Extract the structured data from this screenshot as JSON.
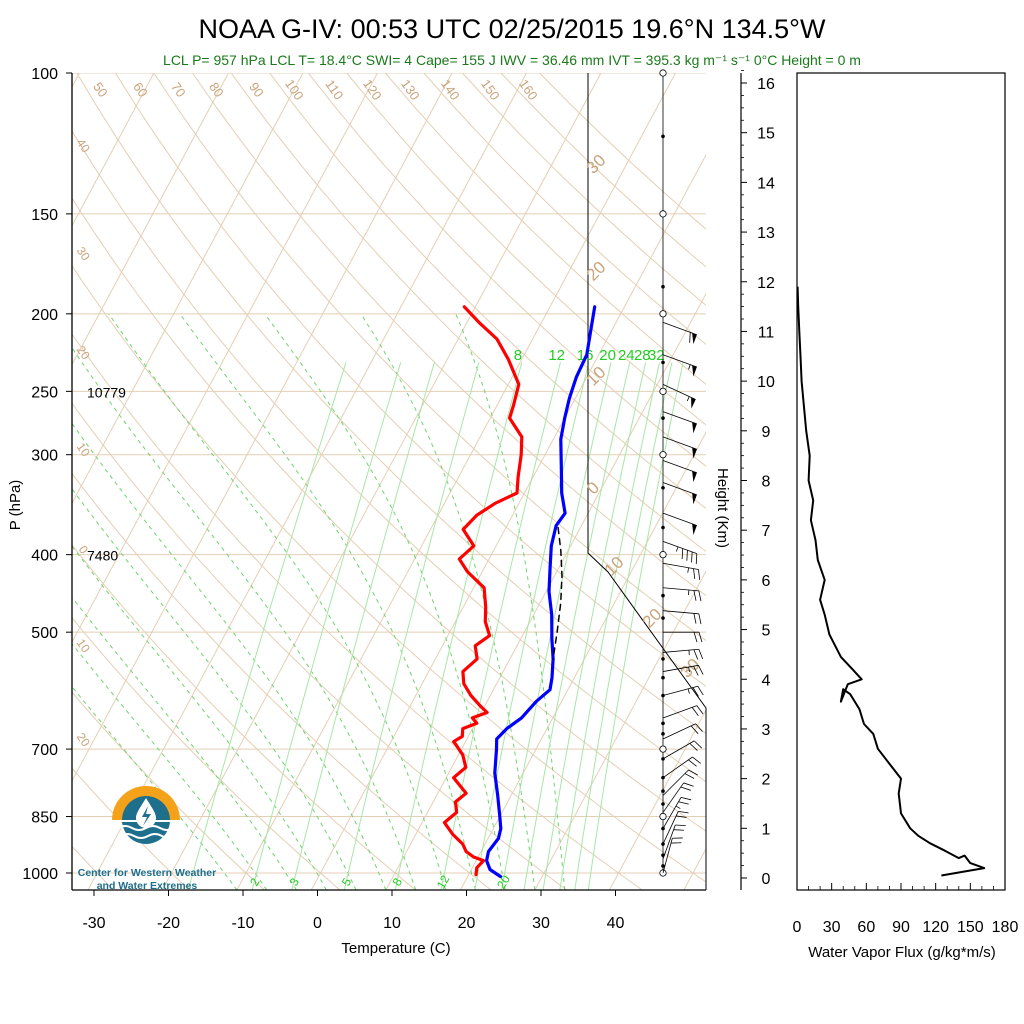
{
  "chart_data": {
    "type": "line",
    "title": "NOAA G-IV: 00:53 UTC 02/25/2015  19.6°N 134.5°W",
    "subtitle": "LCL P= 957 hPa  LCL T= 18.4°C  SWI= 4  Cape= 155 J  IWV = 36.46 mm  IVT = 395.3 kg m⁻¹ s⁻¹  0°C Height = 0 m",
    "xlabel": "Temperature (C)",
    "ylabel": "P (hPa)",
    "xlim": [
      -34,
      36
    ],
    "pressure_range": [
      100,
      1050
    ],
    "x_ticks": [
      "-30",
      "-20",
      "-10",
      "0",
      "10",
      "20",
      "30",
      "40"
    ],
    "p_ticks": [
      {
        "p": 100,
        "label": "100"
      },
      {
        "p": 150,
        "label": "150"
      },
      {
        "p": 200,
        "label": "200"
      },
      {
        "p": 250,
        "label": "250"
      },
      {
        "p": 300,
        "label": "300"
      },
      {
        "p": 400,
        "label": "400"
      },
      {
        "p": 500,
        "label": "500"
      },
      {
        "p": 700,
        "label": "700"
      },
      {
        "p": 850,
        "label": "850"
      },
      {
        "p": 1000,
        "label": "1000"
      }
    ],
    "height_annotations": [
      {
        "p": 250,
        "label": "10779"
      },
      {
        "p": 400,
        "label": "7480"
      }
    ],
    "mixing_ratio_labels": [
      {
        "w": 8,
        "label": "8"
      },
      {
        "w": 12,
        "label": "12"
      },
      {
        "w": 16,
        "label": "16"
      },
      {
        "w": 20,
        "label": "20"
      },
      {
        "w": 24,
        "label": "24"
      },
      {
        "w": 28,
        "label": "28"
      },
      {
        "w": 32,
        "label": "32"
      }
    ],
    "mixing_ratio_bottom_labels": [
      {
        "w": 2,
        "label": "2"
      },
      {
        "w": 3,
        "label": "3"
      },
      {
        "w": 5,
        "label": "5"
      },
      {
        "w": 8,
        "label": "8"
      },
      {
        "w": 12,
        "label": "12"
      },
      {
        "w": 20,
        "label": "20"
      }
    ],
    "dry_adiabat_labels": [
      "50",
      "60",
      "70",
      "80",
      "90",
      "100",
      "110",
      "120",
      "130",
      "140",
      "150",
      "160"
    ],
    "isotherm_labels_left": [
      "40",
      "30",
      "20",
      "10",
      "0",
      "10",
      "20"
    ],
    "isotherm_labels_right": [
      "30",
      "20",
      "10",
      "0",
      "10",
      "20",
      "30"
    ],
    "series": [
      {
        "name": "",
        "color": "#0000ff",
        "points": [
          [
            24.4,
            1010
          ],
          [
            22.5,
            990
          ],
          [
            21.4,
            965
          ],
          [
            21.0,
            940
          ],
          [
            21.4,
            905
          ],
          [
            21.0,
            880
          ],
          [
            20.0,
            850
          ],
          [
            18.2,
            800
          ],
          [
            16.2,
            750
          ],
          [
            14.7,
            700
          ],
          [
            14.0,
            680
          ],
          [
            14.6,
            660
          ],
          [
            15.8,
            640
          ],
          [
            16.6,
            610
          ],
          [
            17.6,
            590
          ],
          [
            17.0,
            570
          ],
          [
            15.8,
            540
          ],
          [
            14.2,
            510
          ],
          [
            12.4,
            475
          ],
          [
            10.4,
            445
          ],
          [
            8.8,
            415
          ],
          [
            7.4,
            390
          ],
          [
            6.6,
            368
          ],
          [
            6.9,
            355
          ],
          [
            5.0,
            335
          ],
          [
            3.0,
            310
          ],
          [
            1.0,
            287
          ],
          [
            0.0,
            270
          ],
          [
            -0.8,
            255
          ],
          [
            -1.4,
            240
          ],
          [
            -1.6,
            225
          ],
          [
            -2.8,
            210
          ],
          [
            -4.0,
            196
          ]
        ]
      },
      {
        "name": "",
        "color": "#ff0000",
        "points": [
          [
            21.0,
            1005
          ],
          [
            20.6,
            985
          ],
          [
            21.0,
            965
          ],
          [
            19.4,
            955
          ],
          [
            18.0,
            940
          ],
          [
            17.0,
            920
          ],
          [
            15.0,
            895
          ],
          [
            13.0,
            865
          ],
          [
            13.9,
            840
          ],
          [
            13.0,
            815
          ],
          [
            13.8,
            795
          ],
          [
            11.0,
            760
          ],
          [
            11.9,
            738
          ],
          [
            10.6,
            712
          ],
          [
            9.0,
            692
          ],
          [
            8.4,
            685
          ],
          [
            9.2,
            675
          ],
          [
            8.7,
            660
          ],
          [
            10.2,
            650
          ],
          [
            9.2,
            640
          ],
          [
            10.8,
            630
          ],
          [
            9.6,
            620
          ],
          [
            7.4,
            600
          ],
          [
            5.6,
            580
          ],
          [
            4.6,
            560
          ],
          [
            5.6,
            540
          ],
          [
            4.4,
            520
          ],
          [
            5.6,
            505
          ],
          [
            4.0,
            485
          ],
          [
            3.0,
            465
          ],
          [
            1.4,
            440
          ],
          [
            -2.0,
            420
          ],
          [
            -4.0,
            405
          ],
          [
            -3.0,
            390
          ],
          [
            -5.6,
            372
          ],
          [
            -4.8,
            357
          ],
          [
            -3.2,
            345
          ],
          [
            -1.0,
            335
          ],
          [
            -2.0,
            320
          ],
          [
            -3.2,
            300
          ],
          [
            -4.4,
            285
          ],
          [
            -7.4,
            270
          ],
          [
            -7.8,
            260
          ],
          [
            -8.6,
            245
          ],
          [
            -11.8,
            228
          ],
          [
            -14.8,
            215
          ],
          [
            -18.4,
            205
          ],
          [
            -21.5,
            196
          ]
        ]
      },
      {
        "name": "",
        "color": "#000000",
        "dash": true,
        "points": [
          [
            7.0,
            370
          ],
          [
            9.0,
            395
          ],
          [
            11.0,
            425
          ],
          [
            12.8,
            460
          ],
          [
            14.4,
            500
          ],
          [
            15.8,
            540
          ]
        ]
      }
    ],
    "height_axis": {
      "label": "Height (Km)",
      "range": [
        0,
        16
      ],
      "ticks": [
        "0",
        "1",
        "2",
        "3",
        "4",
        "5",
        "6",
        "7",
        "8",
        "9",
        "10",
        "11",
        "12",
        "13",
        "14",
        "15",
        "16"
      ]
    },
    "flux_profile": {
      "xlabel": "Water Vapor Flux (g/kg*m/s)",
      "xlim": [
        0,
        180
      ],
      "x_ticks": [
        "0",
        "30",
        "60",
        "90",
        "120",
        "150",
        "180"
      ],
      "points": [
        [
          125,
          0.05
        ],
        [
          150,
          0.15
        ],
        [
          162,
          0.2
        ],
        [
          150,
          0.3
        ],
        [
          145,
          0.45
        ],
        [
          140,
          0.4
        ],
        [
          128,
          0.55
        ],
        [
          115,
          0.7
        ],
        [
          105,
          0.85
        ],
        [
          98,
          1.0
        ],
        [
          90,
          1.3
        ],
        [
          88,
          1.7
        ],
        [
          90,
          2.0
        ],
        [
          80,
          2.3
        ],
        [
          70,
          2.6
        ],
        [
          66,
          2.9
        ],
        [
          58,
          3.1
        ],
        [
          54,
          3.4
        ],
        [
          46,
          3.7
        ],
        [
          40,
          3.8
        ],
        [
          38,
          3.55
        ],
        [
          44,
          3.9
        ],
        [
          56,
          4.0
        ],
        [
          48,
          4.2
        ],
        [
          38,
          4.45
        ],
        [
          28,
          4.9
        ],
        [
          24,
          5.3
        ],
        [
          20,
          5.6
        ],
        [
          24,
          6.0
        ],
        [
          18,
          6.4
        ],
        [
          16,
          6.8
        ],
        [
          12,
          7.2
        ],
        [
          14,
          7.6
        ],
        [
          10,
          8.0
        ],
        [
          11,
          8.5
        ],
        [
          8,
          9.0
        ],
        [
          6,
          9.5
        ],
        [
          4,
          10.0
        ],
        [
          3,
          10.5
        ],
        [
          2,
          11.0
        ],
        [
          1,
          11.5
        ],
        [
          0.5,
          11.9
        ]
      ]
    },
    "wind_axis": {
      "surface_hpa": 1010,
      "circle_levels": [
        100,
        150,
        200,
        250,
        300,
        400,
        700,
        850,
        1000
      ],
      "dot_levels": [
        120,
        185,
        230,
        270,
        330,
        370,
        450,
        480,
        540,
        570,
        600,
        650,
        670,
        720,
        760,
        790,
        820,
        880,
        920,
        950,
        980
      ],
      "barbs": [
        {
          "p": 205,
          "dir": 290,
          "spd": 60
        },
        {
          "p": 225,
          "dir": 290,
          "spd": 55
        },
        {
          "p": 245,
          "dir": 295,
          "spd": 55
        },
        {
          "p": 265,
          "dir": 290,
          "spd": 50
        },
        {
          "p": 285,
          "dir": 290,
          "spd": 50
        },
        {
          "p": 305,
          "dir": 290,
          "spd": 50
        },
        {
          "p": 325,
          "dir": 290,
          "spd": 50
        },
        {
          "p": 355,
          "dir": 290,
          "spd": 50
        },
        {
          "p": 385,
          "dir": 290,
          "spd": 45
        },
        {
          "p": 410,
          "dir": 280,
          "spd": 25
        },
        {
          "p": 440,
          "dir": 275,
          "spd": 25
        },
        {
          "p": 470,
          "dir": 275,
          "spd": 20
        },
        {
          "p": 500,
          "dir": 270,
          "spd": 20
        },
        {
          "p": 530,
          "dir": 265,
          "spd": 25
        },
        {
          "p": 560,
          "dir": 260,
          "spd": 25
        },
        {
          "p": 600,
          "dir": 255,
          "spd": 25
        },
        {
          "p": 640,
          "dir": 250,
          "spd": 20
        },
        {
          "p": 680,
          "dir": 245,
          "spd": 20
        },
        {
          "p": 720,
          "dir": 240,
          "spd": 20
        },
        {
          "p": 760,
          "dir": 235,
          "spd": 20
        },
        {
          "p": 800,
          "dir": 225,
          "spd": 20
        },
        {
          "p": 840,
          "dir": 215,
          "spd": 20
        },
        {
          "p": 880,
          "dir": 210,
          "spd": 25
        },
        {
          "p": 920,
          "dir": 205,
          "spd": 20
        },
        {
          "p": 960,
          "dir": 200,
          "spd": 20
        },
        {
          "p": 1000,
          "dir": 195,
          "spd": 20
        }
      ]
    }
  },
  "logo": {
    "line1": "Center for Western Weather",
    "line2": "and Water Extremes"
  }
}
